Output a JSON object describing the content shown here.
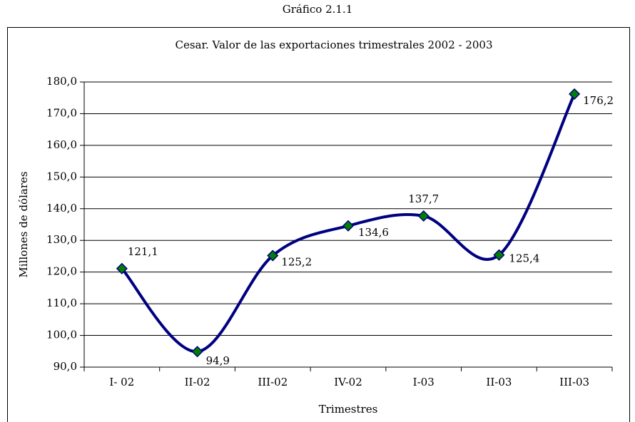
{
  "chart_data": {
    "type": "line",
    "heading": "Gráfico 2.1.1",
    "title": "Cesar. Valor de las exportaciones trimestrales 2002 - 2003",
    "x_label": "Trimestres",
    "y_label": "Millones de dólares",
    "categories": [
      "I- 02",
      "II-02",
      "III-02",
      "IV-02",
      "I-03",
      "II-03",
      "III-03"
    ],
    "values": [
      121.1,
      94.9,
      125.2,
      134.6,
      137.7,
      125.4,
      176.2
    ],
    "value_labels": [
      "121,1",
      "94,9",
      "125,2",
      "134,6",
      "137,7",
      "125,4",
      "176,2"
    ],
    "color": "#000080",
    "marker_color": "#008000",
    "ylim": [
      90,
      180
    ],
    "yticks": [
      {
        "value": 90,
        "label": "90,0"
      },
      {
        "value": 100,
        "label": "100,0"
      },
      {
        "value": 110,
        "label": "110,0"
      },
      {
        "value": 120,
        "label": "120,0"
      },
      {
        "value": 130,
        "label": "130,0"
      },
      {
        "value": 140,
        "label": "140,0"
      },
      {
        "value": 150,
        "label": "150,0"
      },
      {
        "value": 160,
        "label": "160,0"
      },
      {
        "value": 170,
        "label": "170,0"
      },
      {
        "value": 180,
        "label": "180,0"
      }
    ],
    "grid": true
  }
}
